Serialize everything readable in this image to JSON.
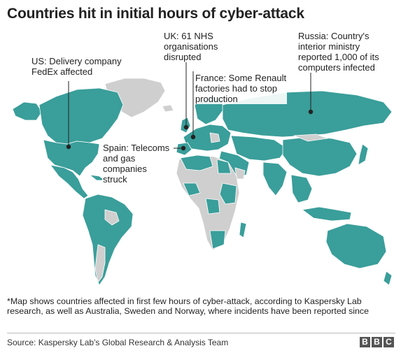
{
  "title": "Countries hit in initial hours of cyber-attack",
  "callouts": {
    "us": "US: Delivery company\nFedEx affected",
    "uk": "UK: 61 NHS\norganisations\ndisrupted",
    "france": "France: Some Renault\nfactories had to stop\nproduction",
    "russia": "Russia: Country's\ninterior ministry\nreported 1,000 of its\ncomputers infected",
    "spain": "Spain: Telecoms\nand gas\ncompanies\nstruck"
  },
  "footnote": "*Map shows countries affected in first few hours of cyber-attack, according to Kaspersky Lab research, as well as Australia, Sweden and Norway, where incidents have been reported since",
  "source": "Source: Kaspersky Lab's Global Research & Analysis Team",
  "logo": [
    "B",
    "B",
    "C"
  ],
  "legend_colors": {
    "affected": "#3a9e9a",
    "not_affected": "#cfcfcf"
  }
}
